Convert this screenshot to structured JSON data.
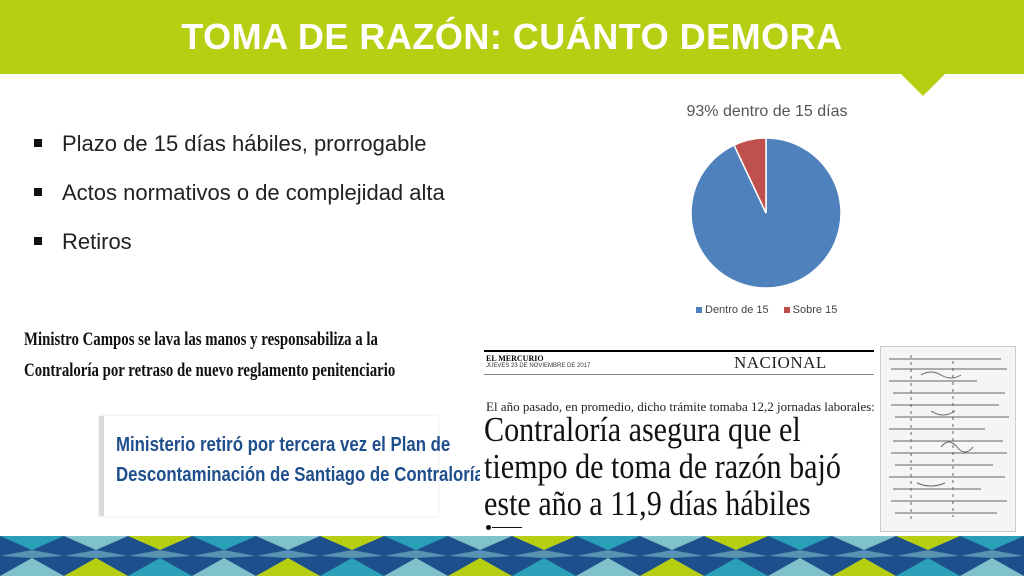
{
  "header": {
    "title": "TOMA DE RAZÓN: CUÁNTO DEMORA",
    "color": "#b7cf12"
  },
  "bullets": [
    "Plazo de 15 días hábiles, prorrogable",
    "Actos normativos o de complejidad alta",
    "Retiros"
  ],
  "chart_data": {
    "type": "pie",
    "title": "93%  dentro de 15 días",
    "categories": [
      "Dentro de 15",
      "Sobre 15"
    ],
    "values": [
      93,
      7
    ],
    "colors": [
      "#4f81bd",
      "#c0504d"
    ],
    "legend": "bottom"
  },
  "news": {
    "headline1": [
      "Ministro Campos se lava las manos y responsabiliza a la",
      "Contraloría por retraso de nuevo reglamento penitenciario"
    ],
    "headline2": [
      "Ministerio retiró por tercera vez el Plan de",
      "Descontaminación de Santiago de Contraloría"
    ],
    "clip": {
      "paper": "EL MERCURIO",
      "date": "JUEVES 23 DE NOVIEMBRE DE 2017",
      "section": "NACIONAL",
      "kicker": "El año pasado, en promedio, dicho trámite tomaba 12,2 jornadas laborales:",
      "headline": [
        "Contraloría asegura que el",
        "tiempo de toma de razón bajó",
        "este año a 11,9 días hábiles"
      ]
    }
  },
  "footer_colors": [
    "#1c4f8c",
    "#2aa0b8",
    "#7fc2c9",
    "#b7cf12"
  ]
}
